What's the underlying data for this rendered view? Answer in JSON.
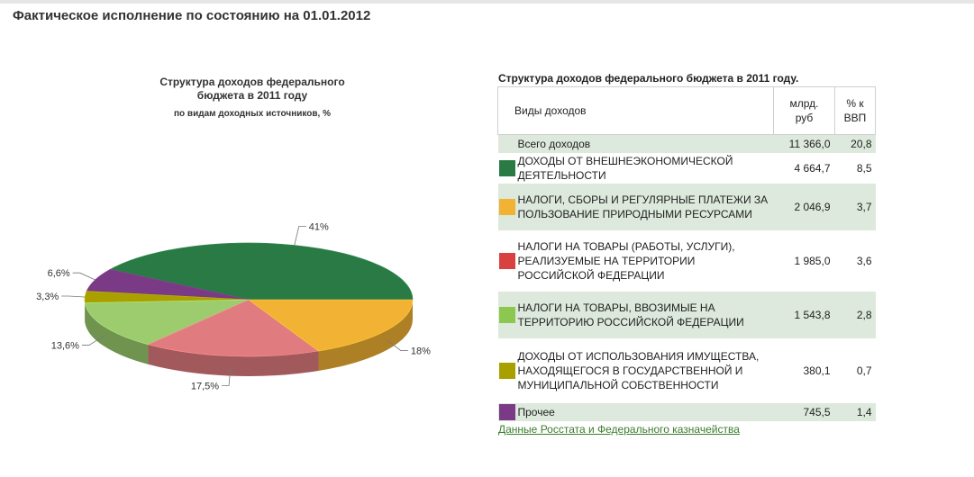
{
  "page": {
    "title": "Фактическое исполнение по состоянию на 01.01.2012"
  },
  "chart_data": {
    "type": "pie",
    "title_lines": [
      "Структура доходов федерального",
      "бюджета в 2011 году"
    ],
    "subtitle": "по видам доходных источников, %",
    "slices": [
      {
        "label": "41%",
        "value": 41.0,
        "color": "#2a7a45"
      },
      {
        "label": "6,6%",
        "value": 6.6,
        "color": "#7a3a85"
      },
      {
        "label": "3,3%",
        "value": 3.3,
        "color": "#a9a000"
      },
      {
        "label": "13,6%",
        "value": 13.6,
        "color": "#9ccc6e"
      },
      {
        "label": "17,5%",
        "value": 17.5,
        "color": "#e07c7f"
      },
      {
        "label": "18%",
        "value": 18.0,
        "color": "#f2b233"
      }
    ]
  },
  "table": {
    "title": "Структура доходов федерального бюджета в 2011 году.",
    "headers": {
      "type": "Виды доходов",
      "value_line1": "млрд.",
      "value_line2": "руб",
      "pct_line1": "% к",
      "pct_line2": "ВВП"
    },
    "rows": [
      {
        "name": "Всего доходов",
        "value": "11 366,0",
        "pct": "20,8",
        "color": null
      },
      {
        "name": "ДОХОДЫ ОТ ВНЕШНЕЭКОНОМИЧЕСКОЙ ДЕЯТЕЛЬНОСТИ",
        "value": "4 664,7",
        "pct": "8,5",
        "color": "#2a7a45"
      },
      {
        "name": "НАЛОГИ, СБОРЫ И РЕГУЛЯРНЫЕ ПЛАТЕЖИ ЗА ПОЛЬЗОВАНИЕ ПРИРОДНЫМИ РЕСУРСАМИ",
        "value": "2 046,9",
        "pct": "3,7",
        "color": "#f2b233"
      },
      {
        "name": "НАЛОГИ НА ТОВАРЫ (РАБОТЫ, УСЛУГИ), РЕАЛИЗУЕМЫЕ НА ТЕРРИТОРИИ РОССИЙСКОЙ ФЕДЕРАЦИИ",
        "value": "1 985,0",
        "pct": "3,6",
        "color": "#d94040"
      },
      {
        "name": "НАЛОГИ НА ТОВАРЫ, ВВОЗИМЫЕ НА ТЕРРИТОРИЮ РОССИЙСКОЙ ФЕДЕРАЦИИ",
        "value": "1 543,8",
        "pct": "2,8",
        "color": "#8cc850"
      },
      {
        "name": "ДОХОДЫ ОТ ИСПОЛЬЗОВАНИЯ ИМУЩЕСТВА, НАХОДЯЩЕГОСЯ В ГОСУДАРСТВЕННОЙ И МУНИЦИПАЛЬНОЙ СОБСТВЕННОСТИ",
        "value": "380,1",
        "pct": "0,7",
        "color": "#a9a000"
      },
      {
        "name": "Прочее",
        "value": "745,5",
        "pct": "1,4",
        "color": "#7a3a85"
      }
    ]
  },
  "source_link": "Данные Росстата и Федерального казначейства"
}
